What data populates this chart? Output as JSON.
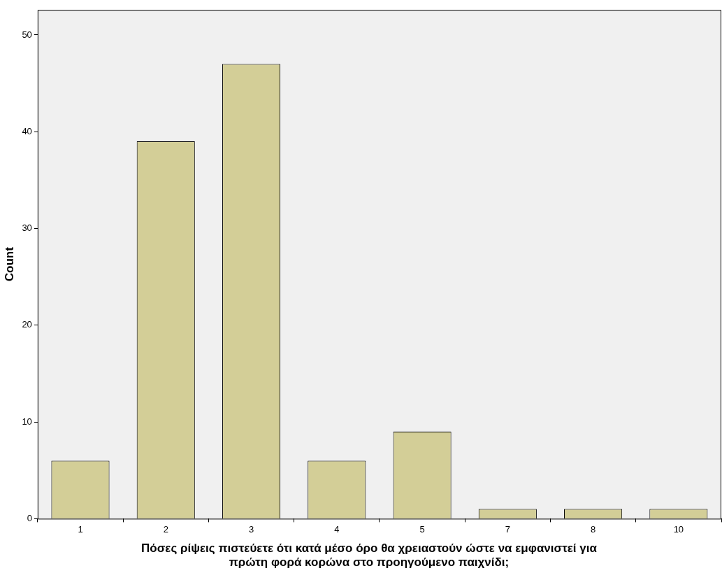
{
  "chart_data": {
    "type": "bar",
    "xlabel": "Πόσες ρίψεις πιστεύετε ότι κατά μέσο όρο θα χρειαστούν ώστε να εμφανιστεί για πρώτη φορά κορώνα στο προηγούμενο παιχνίδι;",
    "ylabel": "Count",
    "categories": [
      "1",
      "2",
      "3",
      "4",
      "5",
      "7",
      "8",
      "10"
    ],
    "values": [
      6,
      39,
      47,
      6,
      9,
      1,
      1,
      1
    ],
    "color": "#d3ce97",
    "ylim": [
      0,
      52.6
    ],
    "yticks": [
      0,
      10,
      20,
      30,
      40,
      50
    ],
    "legend": false
  }
}
